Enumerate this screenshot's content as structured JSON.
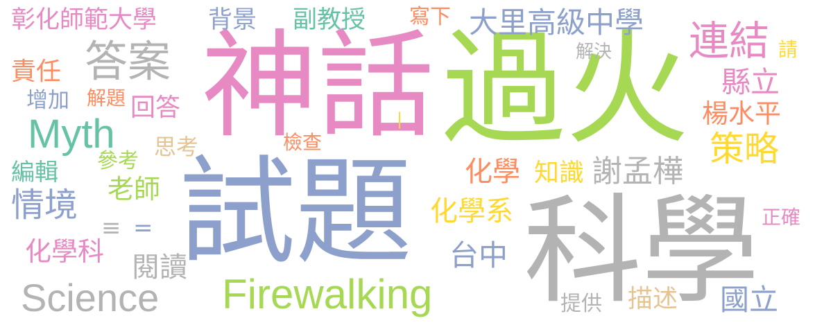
{
  "words": [
    {
      "id": "shenhua",
      "text": "神話",
      "color": "#e78ac3"
    },
    {
      "id": "guohuo",
      "text": "過火",
      "color": "#a6d854"
    },
    {
      "id": "shiti",
      "text": "試題",
      "color": "#8da0cb"
    },
    {
      "id": "kexue",
      "text": "科學",
      "color": "#b3b3b3"
    },
    {
      "id": "science",
      "text": "Science",
      "color": "#b3b3b3"
    },
    {
      "id": "firewalking",
      "text": "Firewalking",
      "color": "#a6d854"
    },
    {
      "id": "myth",
      "text": "Myth",
      "color": "#66c2a5"
    },
    {
      "id": "daan",
      "text": "答案",
      "color": "#b3b3b3"
    },
    {
      "id": "lianjie",
      "text": "連結",
      "color": "#e78ac3"
    },
    {
      "id": "celue",
      "text": "策略",
      "color": "#ffd92f"
    },
    {
      "id": "qingjing",
      "text": "情境",
      "color": "#8da0cb"
    },
    {
      "id": "changhua",
      "text": "彰化師範大學",
      "color": "#e78ac3"
    },
    {
      "id": "beijing",
      "text": "背景",
      "color": "#8da0cb"
    },
    {
      "id": "fujiaoshou",
      "text": "副教授",
      "color": "#66c2a5"
    },
    {
      "id": "xiexia",
      "text": "寫下",
      "color": "#fc8d62"
    },
    {
      "id": "dali",
      "text": "大里高級中學",
      "color": "#8da0cb"
    },
    {
      "id": "qing",
      "text": "請",
      "color": "#ffd92f"
    },
    {
      "id": "jiejue",
      "text": "解決",
      "color": "#b3b3b3"
    },
    {
      "id": "zeren",
      "text": "責任",
      "color": "#fc8d62"
    },
    {
      "id": "xianli",
      "text": "縣立",
      "color": "#e78ac3"
    },
    {
      "id": "zengjia",
      "text": "增加",
      "color": "#8da0cb"
    },
    {
      "id": "jieti",
      "text": "解題",
      "color": "#fc8d62"
    },
    {
      "id": "huida",
      "text": "回答",
      "color": "#e78ac3"
    },
    {
      "id": "yangshuiping",
      "text": "楊水平",
      "color": "#fc8d62"
    },
    {
      "id": "sikao",
      "text": "思考",
      "color": "#e5c494"
    },
    {
      "id": "jiancha",
      "text": "檢查",
      "color": "#fc8d62"
    },
    {
      "id": "bianji",
      "text": "編輯",
      "color": "#66c2a5"
    },
    {
      "id": "cankao",
      "text": "參考",
      "color": "#a6d854"
    },
    {
      "id": "laoshi",
      "text": "老師",
      "color": "#a6d854"
    },
    {
      "id": "huaxue",
      "text": "化學",
      "color": "#fc8d62"
    },
    {
      "id": "zhishi",
      "text": "知識",
      "color": "#ffd92f"
    },
    {
      "id": "xiemenghua",
      "text": "謝孟樺",
      "color": "#b3b3b3"
    },
    {
      "id": "huaxuexi",
      "text": "化學系",
      "color": "#ffd92f"
    },
    {
      "id": "zhengque",
      "text": "正確",
      "color": "#e78ac3"
    },
    {
      "id": "sym3",
      "text": "≡",
      "color": "#b3b3b3"
    },
    {
      "id": "sym2",
      "text": "=",
      "color": "#8da0cb"
    },
    {
      "id": "huaxueke",
      "text": "化學科",
      "color": "#e78ac3"
    },
    {
      "id": "taizhong",
      "text": "台中",
      "color": "#8da0cb"
    },
    {
      "id": "yuedu",
      "text": "閱讀",
      "color": "#b3b3b3"
    },
    {
      "id": "tigong",
      "text": "提供",
      "color": "#b3b3b3"
    },
    {
      "id": "miaoshu",
      "text": "描述",
      "color": "#e5c494"
    },
    {
      "id": "guoli",
      "text": "國立",
      "color": "#8da0cb"
    },
    {
      "id": "bar",
      "text": "|",
      "color": "#ffd92f"
    }
  ]
}
